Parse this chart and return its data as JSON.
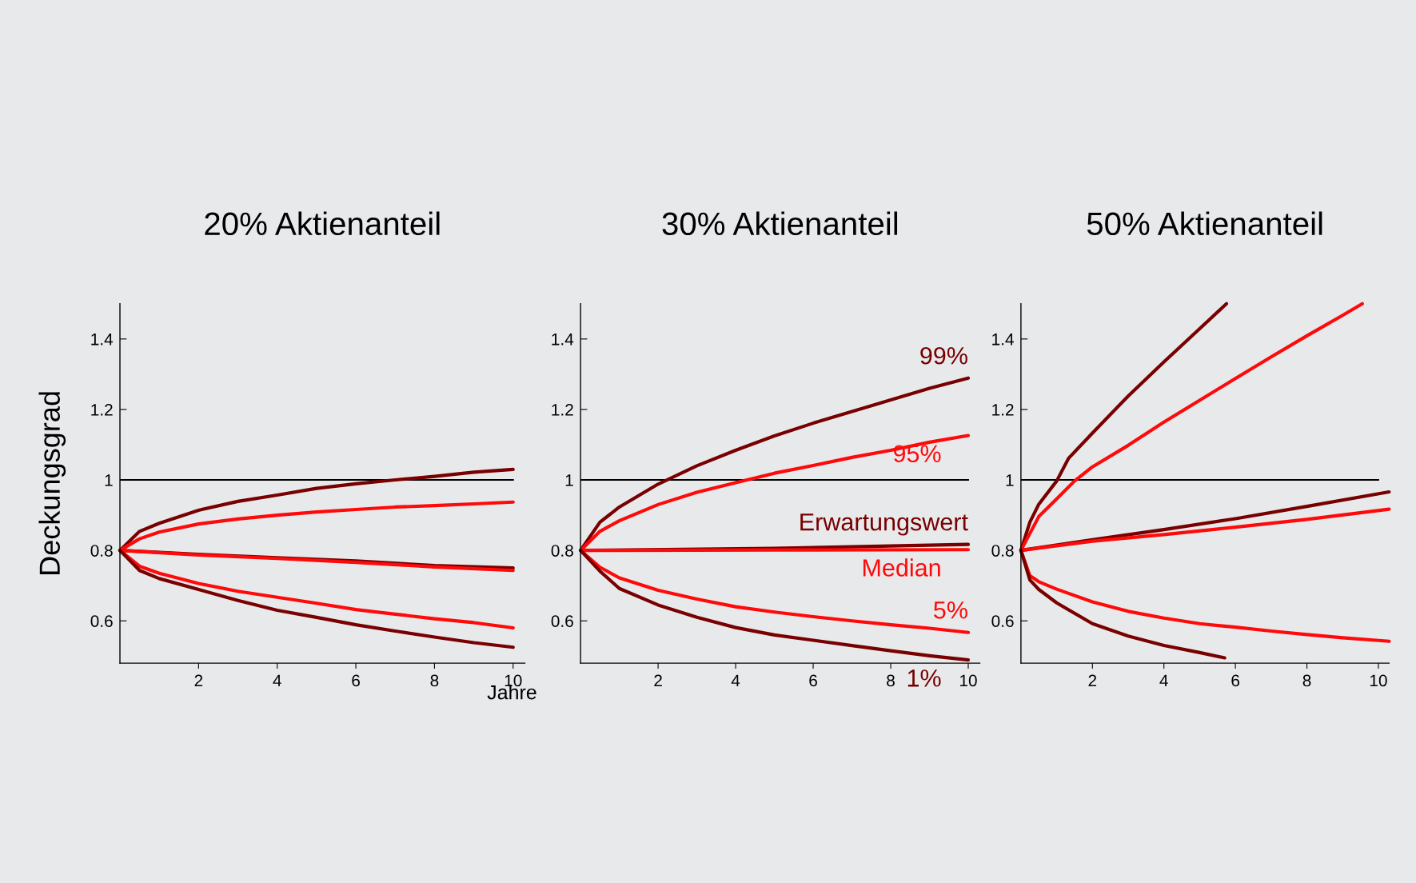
{
  "chart_data": [
    {
      "type": "line",
      "title": "20% Aktienanteil",
      "ylabel": "Deckungsgrad",
      "xlabel": "Jahre",
      "xlim": [
        0,
        10.3
      ],
      "ylim": [
        0.48,
        1.5
      ],
      "xticks": [
        2,
        4,
        6,
        8,
        10
      ],
      "yticks": [
        0.6,
        0.8,
        1,
        1.2,
        1.4
      ],
      "grid": false,
      "legend": false,
      "marker": "none",
      "line_style": "solid",
      "ref_lines": [
        {
          "axis": "y",
          "value": 1,
          "color": "#000000"
        }
      ],
      "series": [
        {
          "color": "#780000",
          "x": [
            0,
            0.5,
            1,
            2,
            3,
            4,
            5,
            6,
            7,
            8,
            9,
            10
          ],
          "values": [
            0.8,
            0.854,
            0.877,
            0.914,
            0.939,
            0.957,
            0.976,
            0.989,
            1.0,
            1.01,
            1.022,
            1.03
          ]
        },
        {
          "color": "#ff0a0a",
          "x": [
            0,
            0.5,
            1,
            2,
            3,
            4,
            5,
            6,
            7,
            8,
            9,
            10
          ],
          "values": [
            0.8,
            0.833,
            0.852,
            0.875,
            0.889,
            0.9,
            0.909,
            0.916,
            0.923,
            0.927,
            0.932,
            0.937
          ]
        },
        {
          "color": "#780000",
          "x": [
            0,
            2,
            4,
            6,
            8,
            10
          ],
          "values": [
            0.8,
            0.789,
            0.779,
            0.77,
            0.757,
            0.75
          ]
        },
        {
          "color": "#ff0a0a",
          "x": [
            0,
            2,
            4,
            6,
            8,
            10
          ],
          "values": [
            0.8,
            0.787,
            0.777,
            0.766,
            0.753,
            0.743
          ]
        },
        {
          "color": "#ff0a0a",
          "x": [
            0,
            0.5,
            1,
            2,
            3,
            4,
            5,
            6,
            7,
            8,
            9,
            10
          ],
          "values": [
            0.8,
            0.755,
            0.735,
            0.706,
            0.684,
            0.667,
            0.65,
            0.632,
            0.619,
            0.606,
            0.595,
            0.58
          ]
        },
        {
          "color": "#780000",
          "x": [
            0,
            0.5,
            1,
            2,
            3,
            4,
            5,
            6,
            7,
            8,
            9,
            10
          ],
          "values": [
            0.8,
            0.743,
            0.72,
            0.689,
            0.658,
            0.63,
            0.61,
            0.589,
            0.571,
            0.554,
            0.538,
            0.525
          ]
        }
      ]
    },
    {
      "type": "line",
      "title": "30% Aktienanteil",
      "xlim": [
        0,
        10.3
      ],
      "ylim": [
        0.48,
        1.5
      ],
      "xticks": [
        2,
        4,
        6,
        8,
        10
      ],
      "yticks": [
        0.6,
        0.8,
        1,
        1.2,
        1.4
      ],
      "grid": false,
      "legend": false,
      "marker": "none",
      "line_style": "solid",
      "ref_lines": [
        {
          "axis": "y",
          "value": 1,
          "color": "#000000"
        }
      ],
      "series": [
        {
          "name": "99%",
          "color": "#780000",
          "x": [
            0,
            0.5,
            1,
            2,
            3,
            4,
            5,
            6,
            7,
            8,
            9,
            10
          ],
          "values": [
            0.8,
            0.88,
            0.923,
            0.988,
            1.04,
            1.084,
            1.125,
            1.161,
            1.194,
            1.227,
            1.26,
            1.289
          ]
        },
        {
          "name": "95%",
          "color": "#ff0a0a",
          "x": [
            0,
            0.5,
            1,
            2,
            3,
            4,
            5,
            6,
            7,
            8,
            9,
            10
          ],
          "values": [
            0.8,
            0.854,
            0.884,
            0.93,
            0.965,
            0.992,
            1.019,
            1.041,
            1.064,
            1.084,
            1.107,
            1.126
          ]
        },
        {
          "name": "Erwartungswert",
          "color": "#780000",
          "x": [
            0,
            5,
            10
          ],
          "values": [
            0.8,
            0.806,
            0.817
          ]
        },
        {
          "name": "Median",
          "color": "#ff0a0a",
          "x": [
            0,
            5,
            10
          ],
          "values": [
            0.8,
            0.801,
            0.802
          ]
        },
        {
          "name": "5%",
          "color": "#ff0a0a",
          "x": [
            0,
            0.5,
            1,
            2,
            3,
            4,
            5,
            6,
            7,
            8,
            9,
            10
          ],
          "values": [
            0.8,
            0.752,
            0.722,
            0.687,
            0.662,
            0.64,
            0.625,
            0.612,
            0.6,
            0.589,
            0.579,
            0.567
          ]
        },
        {
          "name": "1%",
          "color": "#780000",
          "x": [
            0,
            0.5,
            1,
            2,
            3,
            4,
            5,
            6,
            7,
            8,
            9,
            10
          ],
          "values": [
            0.8,
            0.741,
            0.692,
            0.645,
            0.61,
            0.581,
            0.56,
            0.545,
            0.53,
            0.515,
            0.501,
            0.489
          ]
        }
      ]
    },
    {
      "type": "line",
      "title": "50% Aktienanteil",
      "xlim": [
        0,
        10.3
      ],
      "ylim": [
        0.48,
        1.5
      ],
      "xticks": [
        2,
        4,
        6,
        8,
        10
      ],
      "yticks": [
        0.6,
        0.8,
        1,
        1.2,
        1.4
      ],
      "grid": false,
      "legend": false,
      "marker": "none",
      "line_style": "solid",
      "ref_lines": [
        {
          "axis": "y",
          "value": 1,
          "color": "#000000"
        }
      ],
      "series": [
        {
          "color": "#780000",
          "x": [
            0,
            0.25,
            0.5,
            1,
            1.33,
            2,
            3,
            4,
            5,
            5.75
          ],
          "values": [
            0.8,
            0.88,
            0.931,
            0.997,
            1.061,
            1.133,
            1.238,
            1.335,
            1.429,
            1.5
          ]
        },
        {
          "color": "#ff0a0a",
          "x": [
            0,
            0.5,
            1,
            1.5,
            2,
            3,
            4,
            5,
            6,
            7,
            8,
            9,
            9.55
          ],
          "values": [
            0.8,
            0.896,
            0.946,
            0.997,
            1.037,
            1.098,
            1.164,
            1.226,
            1.288,
            1.349,
            1.409,
            1.467,
            1.5
          ]
        },
        {
          "color": "#780000",
          "x": [
            0,
            2,
            4,
            6,
            8,
            10.3
          ],
          "values": [
            0.8,
            0.83,
            0.859,
            0.89,
            0.925,
            0.966
          ]
        },
        {
          "color": "#ff0a0a",
          "x": [
            0,
            2,
            4,
            6,
            8,
            10.3
          ],
          "values": [
            0.8,
            0.826,
            0.845,
            0.866,
            0.888,
            0.917
          ]
        },
        {
          "color": "#ff0a0a",
          "x": [
            0,
            0.25,
            0.5,
            1,
            2,
            3,
            4,
            5,
            6,
            7,
            8,
            9,
            10.3
          ],
          "values": [
            0.8,
            0.728,
            0.711,
            0.69,
            0.654,
            0.627,
            0.608,
            0.592,
            0.582,
            0.571,
            0.561,
            0.552,
            0.542
          ]
        },
        {
          "color": "#780000",
          "x": [
            0,
            0.25,
            0.5,
            1,
            2,
            3,
            4,
            5,
            5.7
          ],
          "values": [
            0.8,
            0.716,
            0.689,
            0.651,
            0.592,
            0.557,
            0.53,
            0.51,
            0.495
          ]
        }
      ]
    }
  ]
}
